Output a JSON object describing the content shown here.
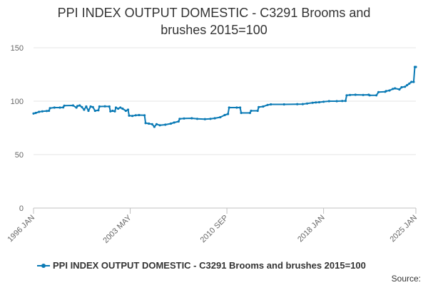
{
  "chart_data": {
    "type": "line",
    "title_lines": [
      "PPI INDEX OUTPUT DOMESTIC - C3291 Brooms and",
      "brushes 2015=100"
    ],
    "xlabel": "",
    "ylabel": "",
    "ylim": [
      0,
      150
    ],
    "yticks": [
      0,
      50,
      100,
      150
    ],
    "xlim": [
      "1996-01",
      "2025-01"
    ],
    "xticks": [
      {
        "date": "1996-01",
        "label": "1996 JAN"
      },
      {
        "date": "2003-05",
        "label": "2003 MAY"
      },
      {
        "date": "2010-09",
        "label": "2010 SEP"
      },
      {
        "date": "2018-01",
        "label": "2018 JAN"
      },
      {
        "date": "2025-01",
        "label": "2025 JAN"
      }
    ],
    "grid": "horizontal",
    "legend_position": "bottom",
    "series": [
      {
        "name": "PPI INDEX OUTPUT DOMESTIC - C3291 Brooms and brushes 2015=100",
        "color": "#0a7ab5",
        "points": [
          [
            "1996-01",
            88.5
          ],
          [
            "1996-03",
            89.0
          ],
          [
            "1996-06",
            90.0
          ],
          [
            "1996-09",
            90.5
          ],
          [
            "1997-01",
            90.8
          ],
          [
            "1997-03",
            91.0
          ],
          [
            "1997-04",
            93.5
          ],
          [
            "1997-08",
            94.0
          ],
          [
            "1998-01",
            94.0
          ],
          [
            "1998-04",
            94.2
          ],
          [
            "1998-05",
            95.8
          ],
          [
            "1999-01",
            96.0
          ],
          [
            "1999-04",
            94.0
          ],
          [
            "1999-05",
            95.5
          ],
          [
            "1999-07",
            96.0
          ],
          [
            "1999-09",
            94.5
          ],
          [
            "1999-11",
            92.0
          ],
          [
            "2000-01",
            95.0
          ],
          [
            "2000-03",
            91.0
          ],
          [
            "2000-05",
            95.0
          ],
          [
            "2000-07",
            94.5
          ],
          [
            "2000-09",
            91.0
          ],
          [
            "2000-12",
            91.5
          ],
          [
            "2001-01",
            95.0
          ],
          [
            "2001-06",
            95.2
          ],
          [
            "2001-10",
            95.0
          ],
          [
            "2001-11",
            90.5
          ],
          [
            "2002-01",
            91.0
          ],
          [
            "2002-03",
            90.5
          ],
          [
            "2002-04",
            94.0
          ],
          [
            "2002-06",
            93.0
          ],
          [
            "2002-08",
            94.0
          ],
          [
            "2002-10",
            93.0
          ],
          [
            "2003-01",
            91.0
          ],
          [
            "2003-03",
            92.0
          ],
          [
            "2003-04",
            86.5
          ],
          [
            "2003-07",
            86.2
          ],
          [
            "2003-10",
            86.8
          ],
          [
            "2004-01",
            87.0
          ],
          [
            "2004-06",
            86.8
          ],
          [
            "2004-07",
            79.5
          ],
          [
            "2004-10",
            79.0
          ],
          [
            "2005-01",
            78.5
          ],
          [
            "2005-03",
            76.0
          ],
          [
            "2005-05",
            78.5
          ],
          [
            "2005-08",
            77.5
          ],
          [
            "2006-01",
            78.0
          ],
          [
            "2006-06",
            79.0
          ],
          [
            "2006-09",
            80.0
          ],
          [
            "2007-01",
            81.0
          ],
          [
            "2007-02",
            83.5
          ],
          [
            "2007-06",
            83.8
          ],
          [
            "2008-01",
            84.0
          ],
          [
            "2008-06",
            83.5
          ],
          [
            "2009-01",
            83.2
          ],
          [
            "2009-06",
            83.5
          ],
          [
            "2009-10",
            84.0
          ],
          [
            "2010-03",
            85.0
          ],
          [
            "2010-07",
            87.0
          ],
          [
            "2010-10",
            88.0
          ],
          [
            "2010-11",
            94.0
          ],
          [
            "2011-06",
            94.0
          ],
          [
            "2011-09",
            94.0
          ],
          [
            "2011-10",
            89.0
          ],
          [
            "2012-06",
            89.0
          ],
          [
            "2012-07",
            91.0
          ],
          [
            "2013-01",
            91.0
          ],
          [
            "2013-02",
            94.5
          ],
          [
            "2013-06",
            95.0
          ],
          [
            "2013-10",
            96.5
          ],
          [
            "2014-01",
            97.0
          ],
          [
            "2015-01",
            97.0
          ],
          [
            "2016-01",
            97.2
          ],
          [
            "2016-06",
            97.3
          ],
          [
            "2016-10",
            97.8
          ],
          [
            "2017-03",
            98.5
          ],
          [
            "2017-06",
            98.8
          ],
          [
            "2017-09",
            99.0
          ],
          [
            "2018-01",
            99.5
          ],
          [
            "2018-06",
            100.0
          ],
          [
            "2019-01",
            100.0
          ],
          [
            "2019-06",
            100.2
          ],
          [
            "2019-09",
            100.3
          ],
          [
            "2019-10",
            105.5
          ],
          [
            "2020-01",
            105.8
          ],
          [
            "2020-06",
            106.0
          ],
          [
            "2021-01",
            105.8
          ],
          [
            "2021-06",
            106.0
          ],
          [
            "2021-07",
            105.5
          ],
          [
            "2022-01",
            105.5
          ],
          [
            "2022-03",
            108.5
          ],
          [
            "2022-09",
            108.8
          ],
          [
            "2022-10",
            109.5
          ],
          [
            "2023-01",
            110.0
          ],
          [
            "2023-04",
            111.5
          ],
          [
            "2023-06",
            112.0
          ],
          [
            "2023-10",
            111.0
          ],
          [
            "2023-12",
            113.0
          ],
          [
            "2024-03",
            113.5
          ],
          [
            "2024-05",
            115.0
          ],
          [
            "2024-07",
            116.5
          ],
          [
            "2024-09",
            118.0
          ],
          [
            "2024-11",
            118.0
          ],
          [
            "2024-12",
            132.0
          ],
          [
            "2025-01",
            132.0
          ]
        ]
      }
    ],
    "source_label": "Source:"
  }
}
